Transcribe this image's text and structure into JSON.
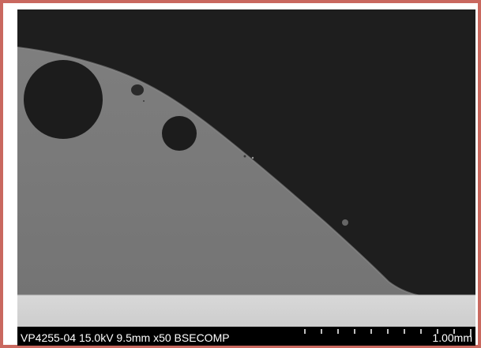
{
  "micrograph": {
    "info_text": "VP4255-04 15.0kV 9.5mm x50 BSECOMP",
    "scale_label": "1.00mm",
    "scale_ticks": 11
  },
  "colors": {
    "frame_border": "#c9685f",
    "background_phase": "#1e1e1e",
    "coating_phase": "#787878",
    "substrate_phase": "#d2d2d2",
    "pore": "#1c1c1c",
    "info_bar": "#000000",
    "info_text": "#ffffff"
  }
}
